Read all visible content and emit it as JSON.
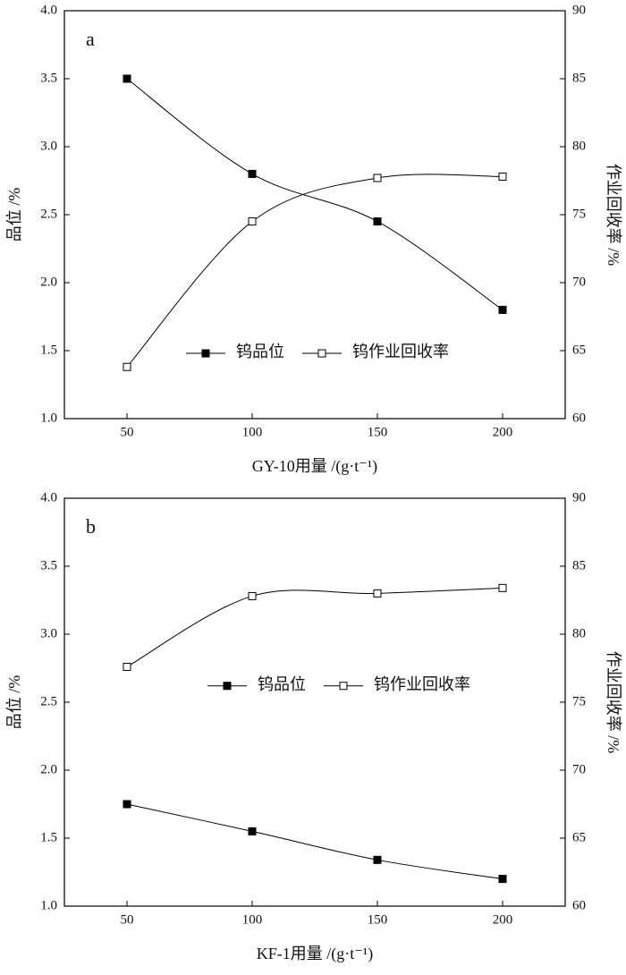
{
  "chart_data": [
    {
      "type": "line",
      "annotation": "a",
      "x_label": "GY-10用量 /(g·t⁻¹)",
      "y_label": "品位 /%",
      "y2_label": "作业回收率 /%",
      "x": [
        50,
        100,
        150,
        200
      ],
      "xlim": [
        25,
        225
      ],
      "xticks": [
        50,
        100,
        150,
        200
      ],
      "ylim": [
        1.0,
        4.0
      ],
      "yticks": [
        {
          "value": 1.0,
          "label": "1.0"
        },
        {
          "value": 1.5,
          "label": "1.5"
        },
        {
          "value": 2.0,
          "label": "2.0"
        },
        {
          "value": 2.5,
          "label": "2.5"
        },
        {
          "value": 3.0,
          "label": "3.0"
        },
        {
          "value": 3.5,
          "label": "3.5"
        },
        {
          "value": 4.0,
          "label": "4.0"
        }
      ],
      "y2lim": [
        60,
        90
      ],
      "y2ticks": [
        60,
        65,
        70,
        75,
        80,
        85,
        90
      ],
      "legend": "lower center",
      "series": [
        {
          "name": "钨品位",
          "color": "#000000",
          "marker": "filled-square",
          "values": [
            3.5,
            2.8,
            2.45,
            1.8
          ]
        },
        {
          "name": "钨作业回收率",
          "color": "#000000",
          "marker": "open-square",
          "axis": "y2",
          "values": [
            63.8,
            74.5,
            77.7,
            77.8
          ]
        }
      ]
    },
    {
      "type": "line",
      "annotation": "b",
      "x_label": "KF-1用量 /(g·t⁻¹)",
      "y_label": "品位 /%",
      "y2_label": "作业回收率 /%",
      "x": [
        50,
        100,
        150,
        200
      ],
      "xlim": [
        25,
        225
      ],
      "xticks": [
        50,
        100,
        150,
        200
      ],
      "ylim": [
        1.0,
        4.0
      ],
      "yticks": [
        {
          "value": 1.0,
          "label": "1.0"
        },
        {
          "value": 1.5,
          "label": "1.5"
        },
        {
          "value": 2.0,
          "label": "2.0"
        },
        {
          "value": 2.5,
          "label": "2.5"
        },
        {
          "value": 3.0,
          "label": "3.0"
        },
        {
          "value": 3.5,
          "label": "3.5"
        },
        {
          "value": 4.0,
          "label": "4.0"
        }
      ],
      "y2lim": [
        60,
        90
      ],
      "y2ticks": [
        60,
        65,
        70,
        75,
        80,
        85,
        90
      ],
      "legend": "center right",
      "series": [
        {
          "name": "钨品位",
          "color": "#000000",
          "marker": "filled-square",
          "values": [
            1.75,
            1.55,
            1.34,
            1.2
          ]
        },
        {
          "name": "钨作业回收率",
          "color": "#000000",
          "marker": "open-square",
          "axis": "y2",
          "values": [
            77.6,
            82.8,
            83.0,
            83.4
          ]
        }
      ]
    }
  ]
}
